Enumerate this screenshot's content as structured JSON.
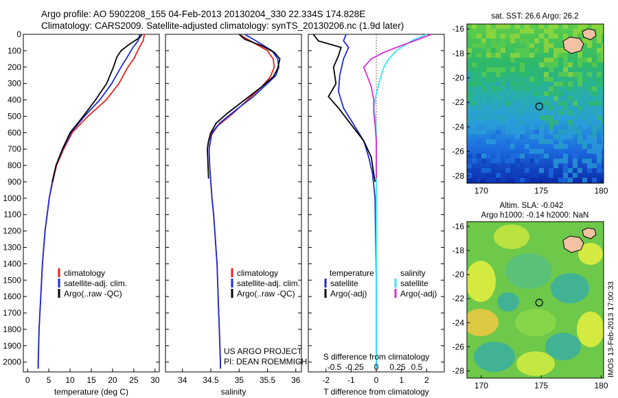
{
  "header": {
    "line1": "Argo profile: AO 5902208_155 04-Feb-2013 20130204_330 22.334S 174.828E",
    "line2": "Climatology: CARS2009. Satellite-adjusted climatology: synTS_20130206.nc (1.9d later)"
  },
  "side_stamp": "IMOS 13-Feb-2013 17:00:33",
  "credits": {
    "line1": "US ARGO PROJECT",
    "line2": "PI: DEAN ROEMMICH"
  },
  "colors": {
    "climatology": "#e8201c",
    "satellite": "#1a2ad8",
    "argo": "#000000",
    "sat_salinity": "#33e6f0",
    "argo_salinity": "#e028d8"
  },
  "chart_data": [
    {
      "type": "line",
      "id": "temperature",
      "xlabel": "temperature (deg C)",
      "xlim": [
        -1,
        31
      ],
      "xticks": [
        0,
        5,
        10,
        15,
        20,
        25,
        30
      ],
      "ylim": [
        0,
        2060
      ],
      "yticks": [
        0,
        100,
        200,
        300,
        400,
        500,
        600,
        700,
        800,
        900,
        1000,
        1100,
        1200,
        1300,
        1400,
        1500,
        1600,
        1700,
        1800,
        1900,
        2000
      ],
      "legend": [
        "climatology",
        "satellite-adj. clim.",
        "Argo(..raw -QC)"
      ],
      "series": [
        {
          "name": "climatology",
          "points": [
            [
              27.5,
              0
            ],
            [
              27.2,
              40
            ],
            [
              26.3,
              80
            ],
            [
              25.0,
              150
            ],
            [
              23.6,
              200
            ],
            [
              21.5,
              300
            ],
            [
              18.5,
              400
            ],
            [
              14.2,
              500
            ],
            [
              10.5,
              600
            ],
            [
              8.5,
              700
            ],
            [
              6.8,
              800
            ],
            [
              5.9,
              900
            ],
            [
              5.1,
              1000
            ],
            [
              4.6,
              1100
            ],
            [
              4.1,
              1200
            ],
            [
              3.8,
              1300
            ],
            [
              3.5,
              1400
            ],
            [
              3.3,
              1500
            ],
            [
              3.1,
              1600
            ],
            [
              2.9,
              1700
            ],
            [
              2.7,
              1800
            ],
            [
              2.6,
              1900
            ],
            [
              2.5,
              2000
            ],
            [
              2.5,
              2040
            ]
          ]
        },
        {
          "name": "satellite-adj. clim.",
          "points": [
            [
              26.4,
              0
            ],
            [
              26.0,
              40
            ],
            [
              24.8,
              80
            ],
            [
              23.2,
              150
            ],
            [
              22.0,
              200
            ],
            [
              19.8,
              300
            ],
            [
              17.0,
              400
            ],
            [
              13.4,
              500
            ],
            [
              10.2,
              600
            ],
            [
              8.3,
              700
            ],
            [
              6.7,
              800
            ],
            [
              5.8,
              900
            ],
            [
              5.1,
              1000
            ],
            [
              4.6,
              1100
            ],
            [
              4.1,
              1200
            ],
            [
              3.8,
              1300
            ],
            [
              3.5,
              1400
            ],
            [
              3.3,
              1500
            ],
            [
              3.1,
              1600
            ],
            [
              2.9,
              1700
            ],
            [
              2.7,
              1800
            ],
            [
              2.6,
              1900
            ],
            [
              2.5,
              2000
            ],
            [
              2.5,
              2040
            ]
          ]
        },
        {
          "name": "Argo(..raw -QC)",
          "points": [
            [
              26.9,
              0
            ],
            [
              26.4,
              20
            ],
            [
              24.0,
              60
            ],
            [
              22.0,
              100
            ],
            [
              21.0,
              140
            ],
            [
              20.2,
              200
            ],
            [
              18.6,
              300
            ],
            [
              16.0,
              400
            ],
            [
              13.1,
              500
            ],
            [
              10.0,
              600
            ],
            [
              8.2,
              700
            ],
            [
              6.7,
              800
            ],
            [
              5.8,
              900
            ]
          ]
        }
      ]
    },
    {
      "type": "line",
      "id": "salinity",
      "xlabel": "salinity",
      "xlim": [
        33.7,
        36.1
      ],
      "xticks": [
        34,
        34.5,
        35,
        35.5,
        36
      ],
      "ylim": [
        0,
        2060
      ],
      "legend": [
        "climatology",
        "satellite-adj. clim.",
        "Argo(..raw -QC)"
      ],
      "series": [
        {
          "name": "climatology",
          "points": [
            [
              35.0,
              0
            ],
            [
              35.2,
              40
            ],
            [
              35.5,
              100
            ],
            [
              35.6,
              150
            ],
            [
              35.62,
              200
            ],
            [
              35.55,
              260
            ],
            [
              35.4,
              320
            ],
            [
              35.15,
              400
            ],
            [
              34.9,
              480
            ],
            [
              34.62,
              560
            ],
            [
              34.5,
              620
            ],
            [
              34.47,
              700
            ],
            [
              34.48,
              800
            ],
            [
              34.5,
              900
            ],
            [
              34.52,
              1000
            ],
            [
              34.55,
              1100
            ],
            [
              34.57,
              1200
            ],
            [
              34.59,
              1300
            ],
            [
              34.61,
              1400
            ],
            [
              34.62,
              1500
            ],
            [
              34.63,
              1600
            ],
            [
              34.64,
              1700
            ],
            [
              34.65,
              1800
            ],
            [
              34.66,
              1900
            ],
            [
              34.67,
              2000
            ],
            [
              34.67,
              2040
            ]
          ]
        },
        {
          "name": "satellite-adj. clim.",
          "points": [
            [
              35.1,
              0
            ],
            [
              35.3,
              40
            ],
            [
              35.58,
              100
            ],
            [
              35.68,
              150
            ],
            [
              35.7,
              200
            ],
            [
              35.65,
              250
            ],
            [
              35.5,
              300
            ],
            [
              35.25,
              380
            ],
            [
              34.95,
              460
            ],
            [
              34.66,
              540
            ],
            [
              34.52,
              600
            ],
            [
              34.47,
              700
            ],
            [
              34.48,
              800
            ],
            [
              34.5,
              900
            ],
            [
              34.52,
              1000
            ],
            [
              34.55,
              1100
            ],
            [
              34.57,
              1200
            ],
            [
              34.59,
              1300
            ],
            [
              34.61,
              1400
            ],
            [
              34.62,
              1500
            ],
            [
              34.63,
              1600
            ],
            [
              34.64,
              1700
            ],
            [
              34.65,
              1800
            ],
            [
              34.66,
              1900
            ],
            [
              34.67,
              2000
            ],
            [
              34.67,
              2040
            ]
          ]
        },
        {
          "name": "Argo(..raw -QC)",
          "points": [
            [
              35.0,
              0
            ],
            [
              35.1,
              30
            ],
            [
              35.4,
              70
            ],
            [
              35.62,
              110
            ],
            [
              35.72,
              150
            ],
            [
              35.68,
              210
            ],
            [
              35.6,
              260
            ],
            [
              35.4,
              320
            ],
            [
              35.1,
              400
            ],
            [
              34.8,
              480
            ],
            [
              34.6,
              540
            ],
            [
              34.5,
              600
            ],
            [
              34.46,
              650
            ],
            [
              34.44,
              700
            ],
            [
              34.45,
              800
            ],
            [
              34.46,
              880
            ]
          ]
        }
      ]
    },
    {
      "type": "line",
      "id": "difference",
      "xlabel": "T difference from climatology",
      "xlabel_top": "S difference from climatology",
      "xlim": [
        -2.7,
        2.7
      ],
      "xticks": [
        -2,
        -1,
        0,
        1,
        2
      ],
      "s_ticks": [
        "-0.5",
        "-0.25",
        "0",
        "0.25",
        "0.5"
      ],
      "legend_headers": [
        "temperature",
        "salinity"
      ],
      "legend": [
        "satellite",
        "Argo(-adj)",
        "satellite",
        "Argo(-adj)"
      ],
      "series": [
        {
          "name": "temperature satellite",
          "points": [
            [
              -1.2,
              0
            ],
            [
              -1.3,
              40
            ],
            [
              -1.1,
              80
            ],
            [
              -1.3,
              150
            ],
            [
              -1.45,
              250
            ],
            [
              -1.5,
              350
            ],
            [
              -1.3,
              450
            ],
            [
              -0.9,
              550
            ],
            [
              -0.5,
              650
            ],
            [
              -0.3,
              750
            ],
            [
              -0.15,
              850
            ],
            [
              -0.05,
              1000
            ],
            [
              0,
              1500
            ],
            [
              0,
              2040
            ]
          ]
        },
        {
          "name": "temperature Argo(-adj)",
          "points": [
            [
              -2.5,
              0
            ],
            [
              -2.3,
              40
            ],
            [
              -1.4,
              80
            ],
            [
              -1.5,
              130
            ],
            [
              -1.7,
              200
            ],
            [
              -1.6,
              300
            ],
            [
              -1.9,
              380
            ],
            [
              -1.5,
              450
            ],
            [
              -1.0,
              550
            ],
            [
              -0.5,
              650
            ],
            [
              -0.2,
              750
            ],
            [
              -0.1,
              850
            ],
            [
              -0.05,
              900
            ]
          ]
        },
        {
          "name": "salinity satellite",
          "points": [
            [
              2.0,
              0
            ],
            [
              1.4,
              40
            ],
            [
              0.8,
              100
            ],
            [
              0.5,
              150
            ],
            [
              0.3,
              200
            ],
            [
              0.1,
              300
            ],
            [
              -0.05,
              400
            ],
            [
              -0.1,
              450
            ],
            [
              -0.05,
              500
            ],
            [
              0,
              600
            ],
            [
              0,
              800
            ],
            [
              0,
              2040
            ]
          ]
        },
        {
          "name": "salinity Argo(-adj)",
          "points": [
            [
              2.2,
              0
            ],
            [
              1.5,
              40
            ],
            [
              0.8,
              80
            ],
            [
              0.3,
              110
            ],
            [
              -0.2,
              150
            ],
            [
              -0.5,
              200
            ],
            [
              -0.35,
              260
            ],
            [
              -0.2,
              320
            ],
            [
              -0.1,
              400
            ],
            [
              -0.1,
              480
            ],
            [
              -0.05,
              550
            ],
            [
              0,
              650
            ],
            [
              0,
              880
            ]
          ]
        }
      ]
    },
    {
      "type": "heatmap",
      "id": "sst_map",
      "title": "sat. SST: 26.6  Argo: 26.2",
      "xticks": [
        "170",
        "175",
        "180"
      ],
      "yticks": [
        "-16",
        "-18",
        "-20",
        "-22",
        "-24",
        "-26",
        "-28"
      ],
      "xlim": [
        168.8,
        180.2
      ],
      "ylim": [
        -28.6,
        -15.6
      ],
      "marker": [
        174.83,
        -22.33
      ]
    },
    {
      "type": "heatmap",
      "id": "sla_map",
      "title_line1": "Altim. SLA: -0.042",
      "title_line2": "Argo h1000: -0.14 h2000: NaN",
      "xticks": [
        "170",
        "175",
        "180"
      ],
      "yticks": [
        "-16",
        "-18",
        "-20",
        "-22",
        "-24",
        "-26",
        "-28"
      ],
      "xlim": [
        168.8,
        180.2
      ],
      "ylim": [
        -28.6,
        -15.6
      ],
      "marker": [
        174.83,
        -22.33
      ]
    }
  ]
}
